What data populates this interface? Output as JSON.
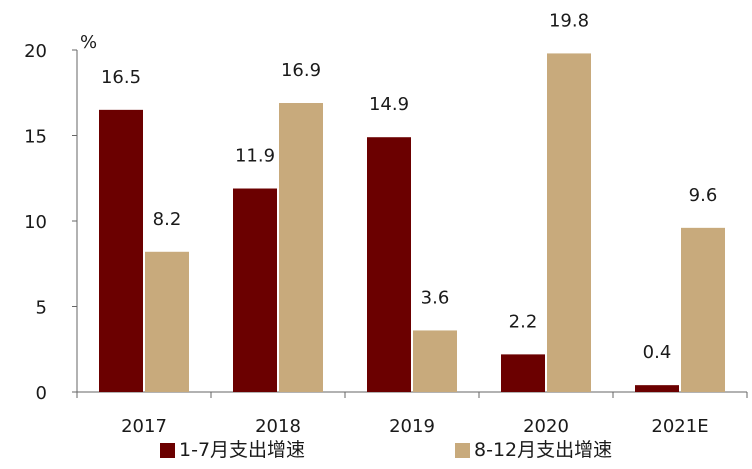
{
  "chart_data": {
    "type": "bar",
    "unit_label": "%",
    "categories": [
      "2017",
      "2018",
      "2019",
      "2020",
      "2021E"
    ],
    "series": [
      {
        "name": "1-7月支出增速",
        "values": [
          16.5,
          11.9,
          14.9,
          2.2,
          0.4
        ],
        "color": "#6b0000"
      },
      {
        "name": "8-12月支出增速",
        "values": [
          8.2,
          16.9,
          3.6,
          19.8,
          9.6
        ],
        "color": "#c8aa7c"
      }
    ],
    "y_ticks": [
      "0",
      "5",
      "10",
      "15",
      "20"
    ],
    "ylim": [
      0,
      20
    ],
    "grid": false,
    "legend_position": "bottom"
  }
}
